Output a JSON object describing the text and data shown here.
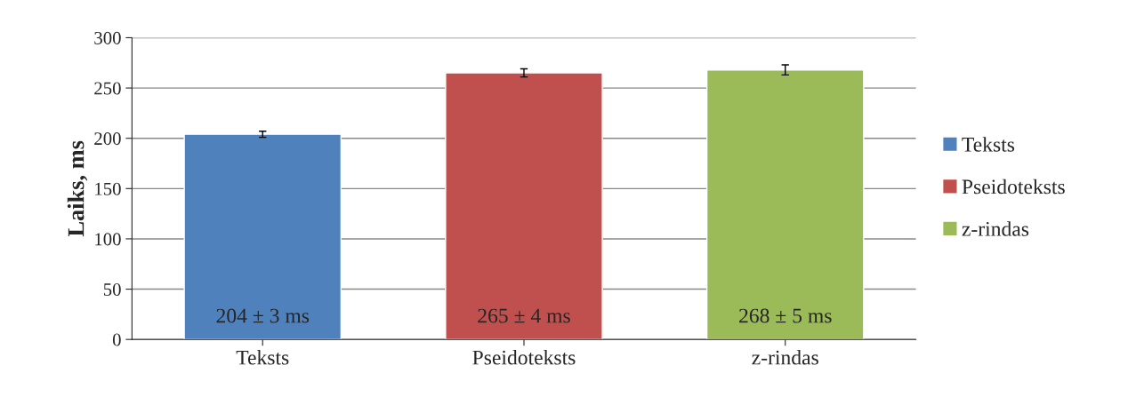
{
  "chart_data": {
    "type": "bar",
    "ylabel": "Laiks, ms",
    "categories": [
      "Teksts",
      "Pseidoteksts",
      "z-rindas"
    ],
    "series": [
      {
        "name": "Teksts",
        "color": "#4f81bd",
        "values": [
          204,
          null,
          null
        ],
        "errors": [
          3,
          null,
          null
        ],
        "value_labels": [
          "204 ± 3 ms",
          null,
          null
        ]
      },
      {
        "name": "Pseidoteksts",
        "color": "#c0504d",
        "values": [
          null,
          265,
          null
        ],
        "errors": [
          null,
          4,
          null
        ],
        "value_labels": [
          null,
          "265 ± 4 ms",
          null
        ]
      },
      {
        "name": "z-rindas",
        "color": "#9bbb59",
        "values": [
          null,
          null,
          268
        ],
        "errors": [
          null,
          null,
          5
        ],
        "value_labels": [
          null,
          null,
          "268 ± 5 ms"
        ]
      }
    ],
    "ylim": [
      0,
      300
    ],
    "yticks": [
      0,
      50,
      100,
      150,
      200,
      250,
      300
    ],
    "grid": "y",
    "legend": "right"
  }
}
